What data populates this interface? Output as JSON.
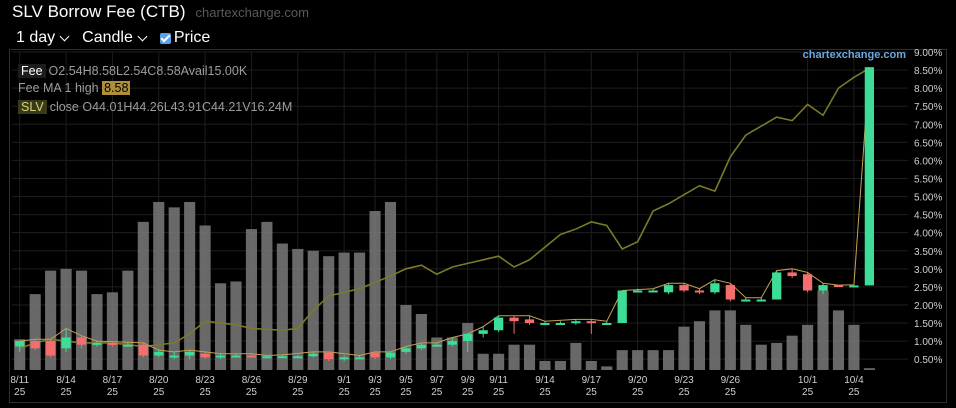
{
  "header": {
    "title": "SLV Borrow Fee (CTB)",
    "site": "chartexchange.com"
  },
  "controls": {
    "interval": "1 day",
    "chart_style": "Candle",
    "price_label": "Price",
    "price_checked": true
  },
  "watermark": "chartexchange.com",
  "legend": {
    "fee": {
      "tag": "Fee",
      "items": [
        {
          "k": "O",
          "v": "2.54"
        },
        {
          "k": "H",
          "v": "8.58"
        },
        {
          "k": "L",
          "v": "2.54"
        },
        {
          "k": "C",
          "v": "8.58"
        },
        {
          "k": "Avail",
          "v": "15.00K"
        }
      ]
    },
    "ma": {
      "label": "Fee MA 1 high",
      "value": "8.58"
    },
    "slv": {
      "tag": "SLV",
      "label": "close",
      "items": [
        {
          "k": "O",
          "v": "44.01"
        },
        {
          "k": "H",
          "v": "44.26"
        },
        {
          "k": "L",
          "v": "43.91"
        },
        {
          "k": "C",
          "v": "44.21"
        },
        {
          "k": "V",
          "v": "16.24M"
        }
      ]
    }
  },
  "colors": {
    "up": "#3ddc97",
    "down": "#f56e6e",
    "volume": "#7a7a7a",
    "price_line": "#7a7a2a",
    "ma_line": "#c8a050",
    "grid": "#1e1e1e",
    "axis_text": "#cfcfcf"
  },
  "chart_data": {
    "type": "candlestick",
    "y_axis": {
      "ticks": [
        "0.50%",
        "1.00%",
        "1.50%",
        "2.00%",
        "2.50%",
        "3.00%",
        "3.50%",
        "4.00%",
        "4.50%",
        "5.00%",
        "5.50%",
        "6.00%",
        "6.50%",
        "7.00%",
        "7.50%",
        "8.00%",
        "8.50%",
        "9.00%"
      ],
      "range": [
        0.2,
        9.0
      ],
      "unit": "%"
    },
    "x_ticks": [
      {
        "label": "8/11",
        "sub": "25",
        "index": 0
      },
      {
        "label": "8/14",
        "sub": "25",
        "index": 3
      },
      {
        "label": "8/17",
        "sub": "25",
        "index": 6
      },
      {
        "label": "8/20",
        "sub": "25",
        "index": 9
      },
      {
        "label": "8/23",
        "sub": "25",
        "index": 12
      },
      {
        "label": "8/26",
        "sub": "25",
        "index": 15
      },
      {
        "label": "8/29",
        "sub": "25",
        "index": 18
      },
      {
        "label": "9/1",
        "sub": "25",
        "index": 21
      },
      {
        "label": "9/3",
        "sub": "25",
        "index": 23
      },
      {
        "label": "9/5",
        "sub": "25",
        "index": 25
      },
      {
        "label": "9/7",
        "sub": "25",
        "index": 27
      },
      {
        "label": "9/9",
        "sub": "25",
        "index": 29
      },
      {
        "label": "9/11",
        "sub": "25",
        "index": 31
      },
      {
        "label": "9/14",
        "sub": "25",
        "index": 34
      },
      {
        "label": "9/17",
        "sub": "25",
        "index": 37
      },
      {
        "label": "9/20",
        "sub": "25",
        "index": 40
      },
      {
        "label": "9/23",
        "sub": "25",
        "index": 43
      },
      {
        "label": "9/26",
        "sub": "25",
        "index": 46
      },
      {
        "label": "10/1",
        "sub": "25",
        "index": 51
      },
      {
        "label": "10/4",
        "sub": "25",
        "index": 54
      }
    ],
    "n_slots": 58,
    "candles": [
      {
        "i": 0,
        "o": 0.85,
        "h": 1.0,
        "l": 0.7,
        "c": 1.0,
        "vol": 0.85
      },
      {
        "i": 1,
        "o": 1.0,
        "h": 1.05,
        "l": 0.75,
        "c": 0.8,
        "vol": 2.1
      },
      {
        "i": 2,
        "o": 1.0,
        "h": 1.05,
        "l": 0.55,
        "c": 0.6,
        "vol": 2.75
      },
      {
        "i": 3,
        "o": 0.8,
        "h": 1.35,
        "l": 0.7,
        "c": 1.1,
        "vol": 2.8
      },
      {
        "i": 4,
        "o": 1.1,
        "h": 1.15,
        "l": 0.8,
        "c": 0.9,
        "vol": 2.75
      },
      {
        "i": 5,
        "o": 0.9,
        "h": 1.0,
        "l": 0.85,
        "c": 0.95,
        "vol": 2.1
      },
      {
        "i": 6,
        "o": 0.95,
        "h": 1.0,
        "l": 0.85,
        "c": 0.9,
        "vol": 2.15
      },
      {
        "i": 7,
        "o": 0.9,
        "h": 0.95,
        "l": 0.85,
        "c": 0.9,
        "vol": 2.75
      },
      {
        "i": 8,
        "o": 0.9,
        "h": 0.95,
        "l": 0.55,
        "c": 0.6,
        "vol": 4.1
      },
      {
        "i": 9,
        "o": 0.6,
        "h": 0.75,
        "l": 0.55,
        "c": 0.7,
        "vol": 4.65
      },
      {
        "i": 10,
        "o": 0.55,
        "h": 0.7,
        "l": 0.5,
        "c": 0.6,
        "vol": 4.5
      },
      {
        "i": 11,
        "o": 0.6,
        "h": 0.75,
        "l": 0.5,
        "c": 0.7,
        "vol": 4.65
      },
      {
        "i": 12,
        "o": 0.65,
        "h": 0.7,
        "l": 0.5,
        "c": 0.55,
        "vol": 4.0
      },
      {
        "i": 13,
        "o": 0.55,
        "h": 0.65,
        "l": 0.5,
        "c": 0.6,
        "vol": 2.4
      },
      {
        "i": 14,
        "o": 0.6,
        "h": 0.65,
        "l": 0.55,
        "c": 0.6,
        "vol": 2.45
      },
      {
        "i": 15,
        "o": 0.6,
        "h": 0.65,
        "l": 0.55,
        "c": 0.58,
        "vol": 3.9
      },
      {
        "i": 16,
        "o": 0.58,
        "h": 0.6,
        "l": 0.55,
        "c": 0.58,
        "vol": 4.1
      },
      {
        "i": 17,
        "o": 0.58,
        "h": 0.62,
        "l": 0.55,
        "c": 0.58,
        "vol": 3.5
      },
      {
        "i": 18,
        "o": 0.58,
        "h": 0.62,
        "l": 0.55,
        "c": 0.58,
        "vol": 3.35
      },
      {
        "i": 19,
        "o": 0.58,
        "h": 0.7,
        "l": 0.55,
        "c": 0.65,
        "vol": 3.3
      },
      {
        "i": 20,
        "o": 0.68,
        "h": 0.7,
        "l": 0.45,
        "c": 0.5,
        "vol": 3.15
      },
      {
        "i": 21,
        "o": 0.5,
        "h": 0.6,
        "l": 0.45,
        "c": 0.55,
        "vol": 3.25
      },
      {
        "i": 22,
        "o": 0.55,
        "h": 0.6,
        "l": 0.5,
        "c": 0.55,
        "vol": 3.25
      },
      {
        "i": 23,
        "o": 0.68,
        "h": 0.7,
        "l": 0.5,
        "c": 0.55,
        "vol": 4.4
      },
      {
        "i": 24,
        "o": 0.55,
        "h": 0.7,
        "l": 0.5,
        "c": 0.68,
        "vol": 4.65
      },
      {
        "i": 25,
        "o": 0.7,
        "h": 0.85,
        "l": 0.65,
        "c": 0.8,
        "vol": 1.8
      },
      {
        "i": 26,
        "o": 0.8,
        "h": 0.95,
        "l": 0.75,
        "c": 0.9,
        "vol": 1.55
      },
      {
        "i": 27,
        "o": 0.9,
        "h": 0.95,
        "l": 0.85,
        "c": 0.9,
        "vol": 0.9
      },
      {
        "i": 28,
        "o": 0.9,
        "h": 1.1,
        "l": 0.85,
        "c": 1.0,
        "vol": 0.9
      },
      {
        "i": 29,
        "o": 1.0,
        "h": 1.2,
        "l": 0.7,
        "c": 1.2,
        "vol": 1.3
      },
      {
        "i": 30,
        "o": 1.2,
        "h": 1.4,
        "l": 1.1,
        "c": 1.3,
        "vol": 0.45
      },
      {
        "i": 31,
        "o": 1.3,
        "h": 1.7,
        "l": 1.25,
        "c": 1.65,
        "vol": 0.45
      },
      {
        "i": 32,
        "o": 1.65,
        "h": 1.7,
        "l": 1.2,
        "c": 1.55,
        "vol": 0.7
      },
      {
        "i": 33,
        "o": 1.6,
        "h": 1.7,
        "l": 1.45,
        "c": 1.5,
        "vol": 0.7
      },
      {
        "i": 34,
        "o": 1.5,
        "h": 1.55,
        "l": 1.45,
        "c": 1.5,
        "vol": 0.25
      },
      {
        "i": 35,
        "o": 1.5,
        "h": 1.55,
        "l": 1.45,
        "c": 1.5,
        "vol": 0.25
      },
      {
        "i": 36,
        "o": 1.5,
        "h": 1.6,
        "l": 1.45,
        "c": 1.55,
        "vol": 0.75
      },
      {
        "i": 37,
        "o": 1.55,
        "h": 1.6,
        "l": 1.2,
        "c": 1.5,
        "vol": 0.25
      },
      {
        "i": 38,
        "o": 1.5,
        "h": 1.55,
        "l": 1.45,
        "c": 1.5,
        "vol": 0.1
      },
      {
        "i": 39,
        "o": 1.5,
        "h": 2.4,
        "l": 1.5,
        "c": 2.4,
        "vol": 0.55
      },
      {
        "i": 40,
        "o": 2.4,
        "h": 2.45,
        "l": 2.35,
        "c": 2.4,
        "vol": 0.55
      },
      {
        "i": 41,
        "o": 2.4,
        "h": 2.45,
        "l": 2.35,
        "c": 2.4,
        "vol": 0.55
      },
      {
        "i": 42,
        "o": 2.35,
        "h": 2.6,
        "l": 2.3,
        "c": 2.55,
        "vol": 0.55
      },
      {
        "i": 43,
        "o": 2.55,
        "h": 2.6,
        "l": 2.35,
        "c": 2.4,
        "vol": 1.2
      },
      {
        "i": 44,
        "o": 2.4,
        "h": 2.45,
        "l": 2.3,
        "c": 2.35,
        "vol": 1.35
      },
      {
        "i": 45,
        "o": 2.35,
        "h": 2.7,
        "l": 2.3,
        "c": 2.6,
        "vol": 1.65
      },
      {
        "i": 46,
        "o": 2.55,
        "h": 2.6,
        "l": 2.1,
        "c": 2.15,
        "vol": 1.65
      },
      {
        "i": 47,
        "o": 2.15,
        "h": 2.2,
        "l": 2.1,
        "c": 2.15,
        "vol": 1.25
      },
      {
        "i": 48,
        "o": 2.15,
        "h": 2.2,
        "l": 2.1,
        "c": 2.15,
        "vol": 0.7
      },
      {
        "i": 49,
        "o": 2.15,
        "h": 2.95,
        "l": 2.15,
        "c": 2.9,
        "vol": 0.75
      },
      {
        "i": 50,
        "o": 2.9,
        "h": 3.0,
        "l": 2.75,
        "c": 2.8,
        "vol": 0.95
      },
      {
        "i": 51,
        "o": 2.85,
        "h": 2.9,
        "l": 2.35,
        "c": 2.4,
        "vol": 1.25
      },
      {
        "i": 52,
        "o": 2.4,
        "h": 2.6,
        "l": 2.3,
        "c": 2.55,
        "vol": 2.2
      },
      {
        "i": 53,
        "o": 2.55,
        "h": 2.55,
        "l": 2.5,
        "c": 2.54,
        "vol": 1.65
      },
      {
        "i": 54,
        "o": 2.54,
        "h": 2.56,
        "l": 2.52,
        "c": 2.54,
        "vol": 1.25
      },
      {
        "i": 55,
        "o": 2.54,
        "h": 8.58,
        "l": 2.54,
        "c": 8.58,
        "vol": 0.05
      }
    ],
    "price_line": {
      "name": "SLV close",
      "points": [
        [
          0,
          0.8
        ],
        [
          1,
          0.95
        ],
        [
          2,
          1.05
        ],
        [
          4,
          0.95
        ],
        [
          6,
          0.95
        ],
        [
          8,
          0.85
        ],
        [
          10,
          0.95
        ],
        [
          11,
          1.2
        ],
        [
          12,
          1.55
        ],
        [
          14,
          1.45
        ],
        [
          15,
          1.35
        ],
        [
          17,
          1.3
        ],
        [
          18,
          1.35
        ],
        [
          19,
          1.85
        ],
        [
          20,
          2.25
        ],
        [
          22,
          2.45
        ],
        [
          24,
          2.8
        ],
        [
          25,
          3.0
        ],
        [
          26,
          3.1
        ],
        [
          27,
          2.85
        ],
        [
          28,
          3.05
        ],
        [
          29,
          3.15
        ],
        [
          30,
          3.25
        ],
        [
          31,
          3.35
        ],
        [
          32,
          3.05
        ],
        [
          33,
          3.25
        ],
        [
          34,
          3.6
        ],
        [
          35,
          3.95
        ],
        [
          36,
          4.1
        ],
        [
          37,
          4.3
        ],
        [
          38,
          4.2
        ],
        [
          39,
          3.55
        ],
        [
          40,
          3.75
        ],
        [
          41,
          4.6
        ],
        [
          42,
          4.8
        ],
        [
          43,
          5.05
        ],
        [
          44,
          5.3
        ],
        [
          45,
          5.15
        ],
        [
          46,
          6.1
        ],
        [
          47,
          6.7
        ],
        [
          48,
          6.95
        ],
        [
          49,
          7.2
        ],
        [
          50,
          7.1
        ],
        [
          51,
          7.55
        ],
        [
          52,
          7.25
        ],
        [
          53,
          8.0
        ],
        [
          54,
          8.3
        ],
        [
          55,
          8.55
        ]
      ]
    },
    "ma_line": {
      "name": "Fee MA 1 high",
      "points": [
        [
          0,
          1.0
        ],
        [
          1,
          1.05
        ],
        [
          2,
          1.05
        ],
        [
          3,
          1.35
        ],
        [
          4,
          1.15
        ],
        [
          5,
          1.0
        ],
        [
          8,
          0.95
        ],
        [
          9,
          0.75
        ],
        [
          10,
          0.7
        ],
        [
          11,
          0.75
        ],
        [
          12,
          0.7
        ],
        [
          13,
          0.65
        ],
        [
          14,
          0.65
        ],
        [
          15,
          0.65
        ],
        [
          16,
          0.6
        ],
        [
          17,
          0.62
        ],
        [
          19,
          0.7
        ],
        [
          20,
          0.7
        ],
        [
          22,
          0.6
        ],
        [
          23,
          0.7
        ],
        [
          24,
          0.7
        ],
        [
          25,
          0.85
        ],
        [
          26,
          0.95
        ],
        [
          27,
          0.95
        ],
        [
          28,
          1.1
        ],
        [
          29,
          1.2
        ],
        [
          30,
          1.4
        ],
        [
          31,
          1.7
        ],
        [
          32,
          1.7
        ],
        [
          33,
          1.7
        ],
        [
          34,
          1.55
        ],
        [
          36,
          1.6
        ],
        [
          37,
          1.6
        ],
        [
          38,
          1.55
        ],
        [
          39,
          2.4
        ],
        [
          41,
          2.45
        ],
        [
          42,
          2.6
        ],
        [
          43,
          2.6
        ],
        [
          44,
          2.45
        ],
        [
          45,
          2.7
        ],
        [
          46,
          2.6
        ],
        [
          47,
          2.2
        ],
        [
          48,
          2.2
        ],
        [
          49,
          2.95
        ],
        [
          50,
          3.0
        ],
        [
          51,
          2.9
        ],
        [
          52,
          2.6
        ],
        [
          53,
          2.55
        ],
        [
          54,
          2.56
        ],
        [
          55,
          8.58
        ]
      ]
    }
  }
}
